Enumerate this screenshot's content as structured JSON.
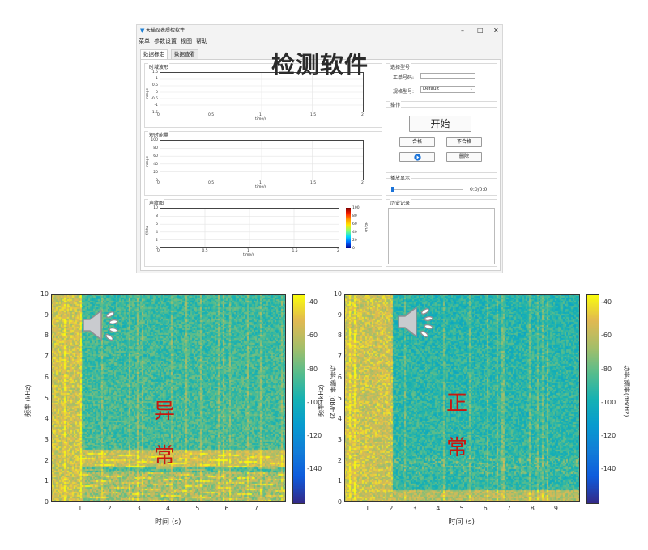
{
  "window": {
    "title": "天猫仪表质检软件",
    "controls": {
      "minimize": "–",
      "maximize": "□",
      "close": "✕"
    }
  },
  "menu": [
    "菜单",
    "参数设置",
    "视图",
    "帮助"
  ],
  "tabs": [
    {
      "label": "数据标定",
      "active": true
    },
    {
      "label": "数据查看",
      "active": false
    }
  ],
  "overlay_title": "检测软件",
  "groups": {
    "time_wave": "时域波形",
    "short_energy": "短时能量",
    "voiceprint": "声纹图",
    "model_select": "选择型号",
    "operation": "操作",
    "playback": "播放显示",
    "history": "历史记录"
  },
  "small_plots": {
    "time_wave": {
      "yticks": [
        "1.5",
        "1",
        "0.5",
        "0",
        "-0.5",
        "-1",
        "-1.5"
      ],
      "xticks": [
        "0",
        "0.5",
        "1",
        "1.5",
        "2"
      ],
      "xlabel": "time/s",
      "ylabel": "range"
    },
    "short_energy": {
      "yticks": [
        "100",
        "80",
        "60",
        "40",
        "20",
        "0"
      ],
      "xticks": [
        "0",
        "0.5",
        "1",
        "1.5",
        "2"
      ],
      "xlabel": "time/s",
      "ylabel": "range"
    },
    "voiceprint": {
      "yticks": [
        "10",
        "8",
        "6",
        "4",
        "2",
        "0"
      ],
      "xticks": [
        "0",
        "0.5",
        "1",
        "1.5",
        "2"
      ],
      "xlabel": "time/s",
      "ylabel": "f/khz",
      "cbar_ticks": [
        "100",
        "80",
        "60",
        "40",
        "20",
        "0"
      ],
      "cbar_label": "dB/Hz"
    }
  },
  "form": {
    "work_order_label": "工单号码:",
    "work_order_value": "",
    "spec_label": "规格型号:",
    "spec_value": "Default",
    "start_button": "开始",
    "pass_button": "合格",
    "fail_button": "不合格",
    "play_icon": "play-icon",
    "delete_button": "删除",
    "playback_time": "0:0/0:0",
    "playback_progress": 0.0
  },
  "spectrograms": [
    {
      "label_chars": [
        "异",
        "常"
      ],
      "ylabel": "频率 (kHz)",
      "xlabel": "时间 (s)",
      "yticks": [
        "10",
        "9",
        "8",
        "7",
        "6",
        "5",
        "4",
        "3",
        "2",
        "1",
        "0"
      ],
      "xticks": [
        "1",
        "2",
        "3",
        "4",
        "5",
        "6",
        "7"
      ],
      "cbar_ticks": [
        "-40",
        "-60",
        "-80",
        "-100",
        "-120",
        "-140"
      ],
      "cbar_label": "功率/频率 (dB/Hz)",
      "speaker_icon": "speaker-icon"
    },
    {
      "label_chars": [
        "正",
        "常"
      ],
      "ylabel": "频率 (kHz)",
      "xlabel": "时间 (s)",
      "yticks": [
        "10",
        "9",
        "8",
        "7",
        "6",
        "5",
        "4",
        "3",
        "2",
        "1",
        "0"
      ],
      "xticks": [
        "1",
        "2",
        "3",
        "4",
        "5",
        "6",
        "7",
        "8",
        "9"
      ],
      "cbar_ticks": [
        "-40",
        "-60",
        "-80",
        "-100",
        "-120",
        "-140"
      ],
      "cbar_label": "功率/频率(dB/Hz)",
      "speaker_icon": "speaker-icon"
    }
  ]
}
